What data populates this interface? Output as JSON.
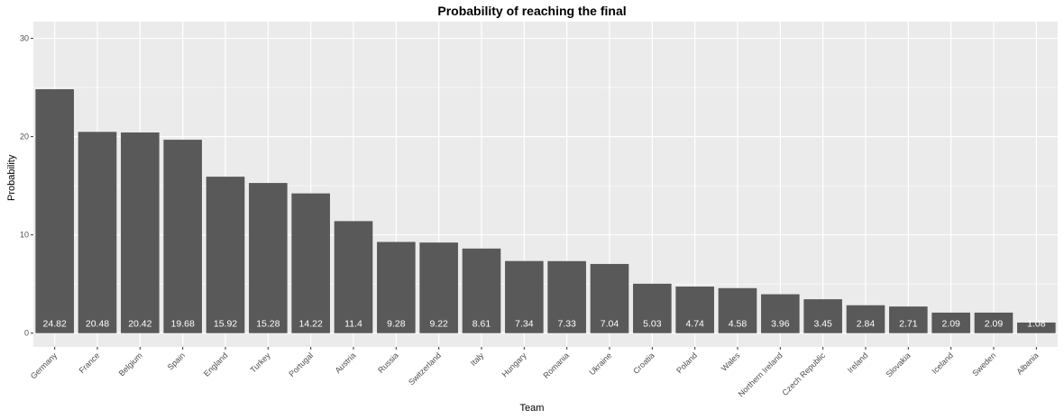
{
  "chart_data": {
    "type": "bar",
    "title": "Probability of reaching the final",
    "xlabel": "Team",
    "ylabel": "Probability",
    "ylim": [
      -1.4,
      31.7
    ],
    "yticks": [
      0,
      10,
      20,
      30
    ],
    "grid": true,
    "bar_color": "#595959",
    "panel_color": "#ebebeb",
    "grid_color": "#ffffff",
    "categories": [
      "Germany",
      "France",
      "Belgium",
      "Spain",
      "England",
      "Turkey",
      "Portugal",
      "Austria",
      "Russia",
      "Switzerland",
      "Italy",
      "Hungary",
      "Romania",
      "Ukraine",
      "Croatia",
      "Poland",
      "Wales",
      "Northern Ireland",
      "Czech Republic",
      "Ireland",
      "Slovakia",
      "Iceland",
      "Sweden",
      "Albania"
    ],
    "values": [
      24.82,
      20.48,
      20.42,
      19.68,
      15.92,
      15.28,
      14.22,
      11.4,
      9.28,
      9.22,
      8.61,
      7.34,
      7.33,
      7.04,
      5.03,
      4.74,
      4.58,
      3.96,
      3.45,
      2.84,
      2.71,
      2.09,
      2.09,
      1.08
    ],
    "value_labels": [
      "24.82",
      "20.48",
      "20.42",
      "19.68",
      "15.92",
      "15.28",
      "14.22",
      "11.4",
      "9.28",
      "9.22",
      "8.61",
      "7.34",
      "7.33",
      "7.04",
      "5.03",
      "4.74",
      "4.58",
      "3.96",
      "3.45",
      "2.84",
      "2.71",
      "2.09",
      "2.09",
      "1.08"
    ]
  }
}
